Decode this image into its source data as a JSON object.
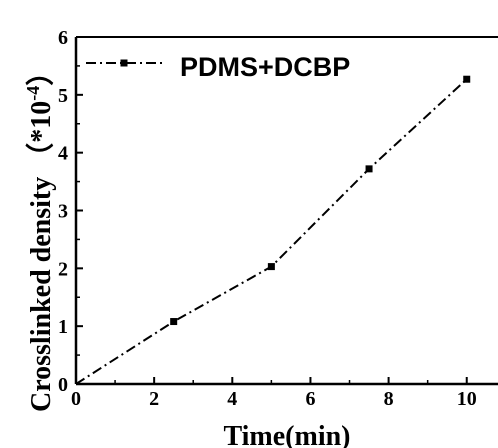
{
  "chart_data": {
    "type": "line",
    "series": [
      {
        "name": "PDMS+DCBP",
        "x": [
          0,
          2.5,
          5,
          7.5,
          10
        ],
        "y": [
          0,
          1.08,
          2.03,
          3.72,
          5.27
        ],
        "color": "#000000",
        "line_style": "dash-dot",
        "marker": "square"
      }
    ],
    "xlabel": "Time(min)",
    "ylabel": "Crosslinked density",
    "ylabel_unit_prefix": "（*10",
    "ylabel_unit_exponent": "-4",
    "ylabel_unit_suffix": "）",
    "xlim": [
      0,
      10.8
    ],
    "ylim": [
      0,
      6
    ],
    "xticks": [
      "0",
      "2",
      "4",
      "6",
      "8",
      "10"
    ],
    "yticks": [
      "0",
      "1",
      "2",
      "3",
      "4",
      "5",
      "6"
    ],
    "grid": false,
    "legend_position": "top-left"
  }
}
